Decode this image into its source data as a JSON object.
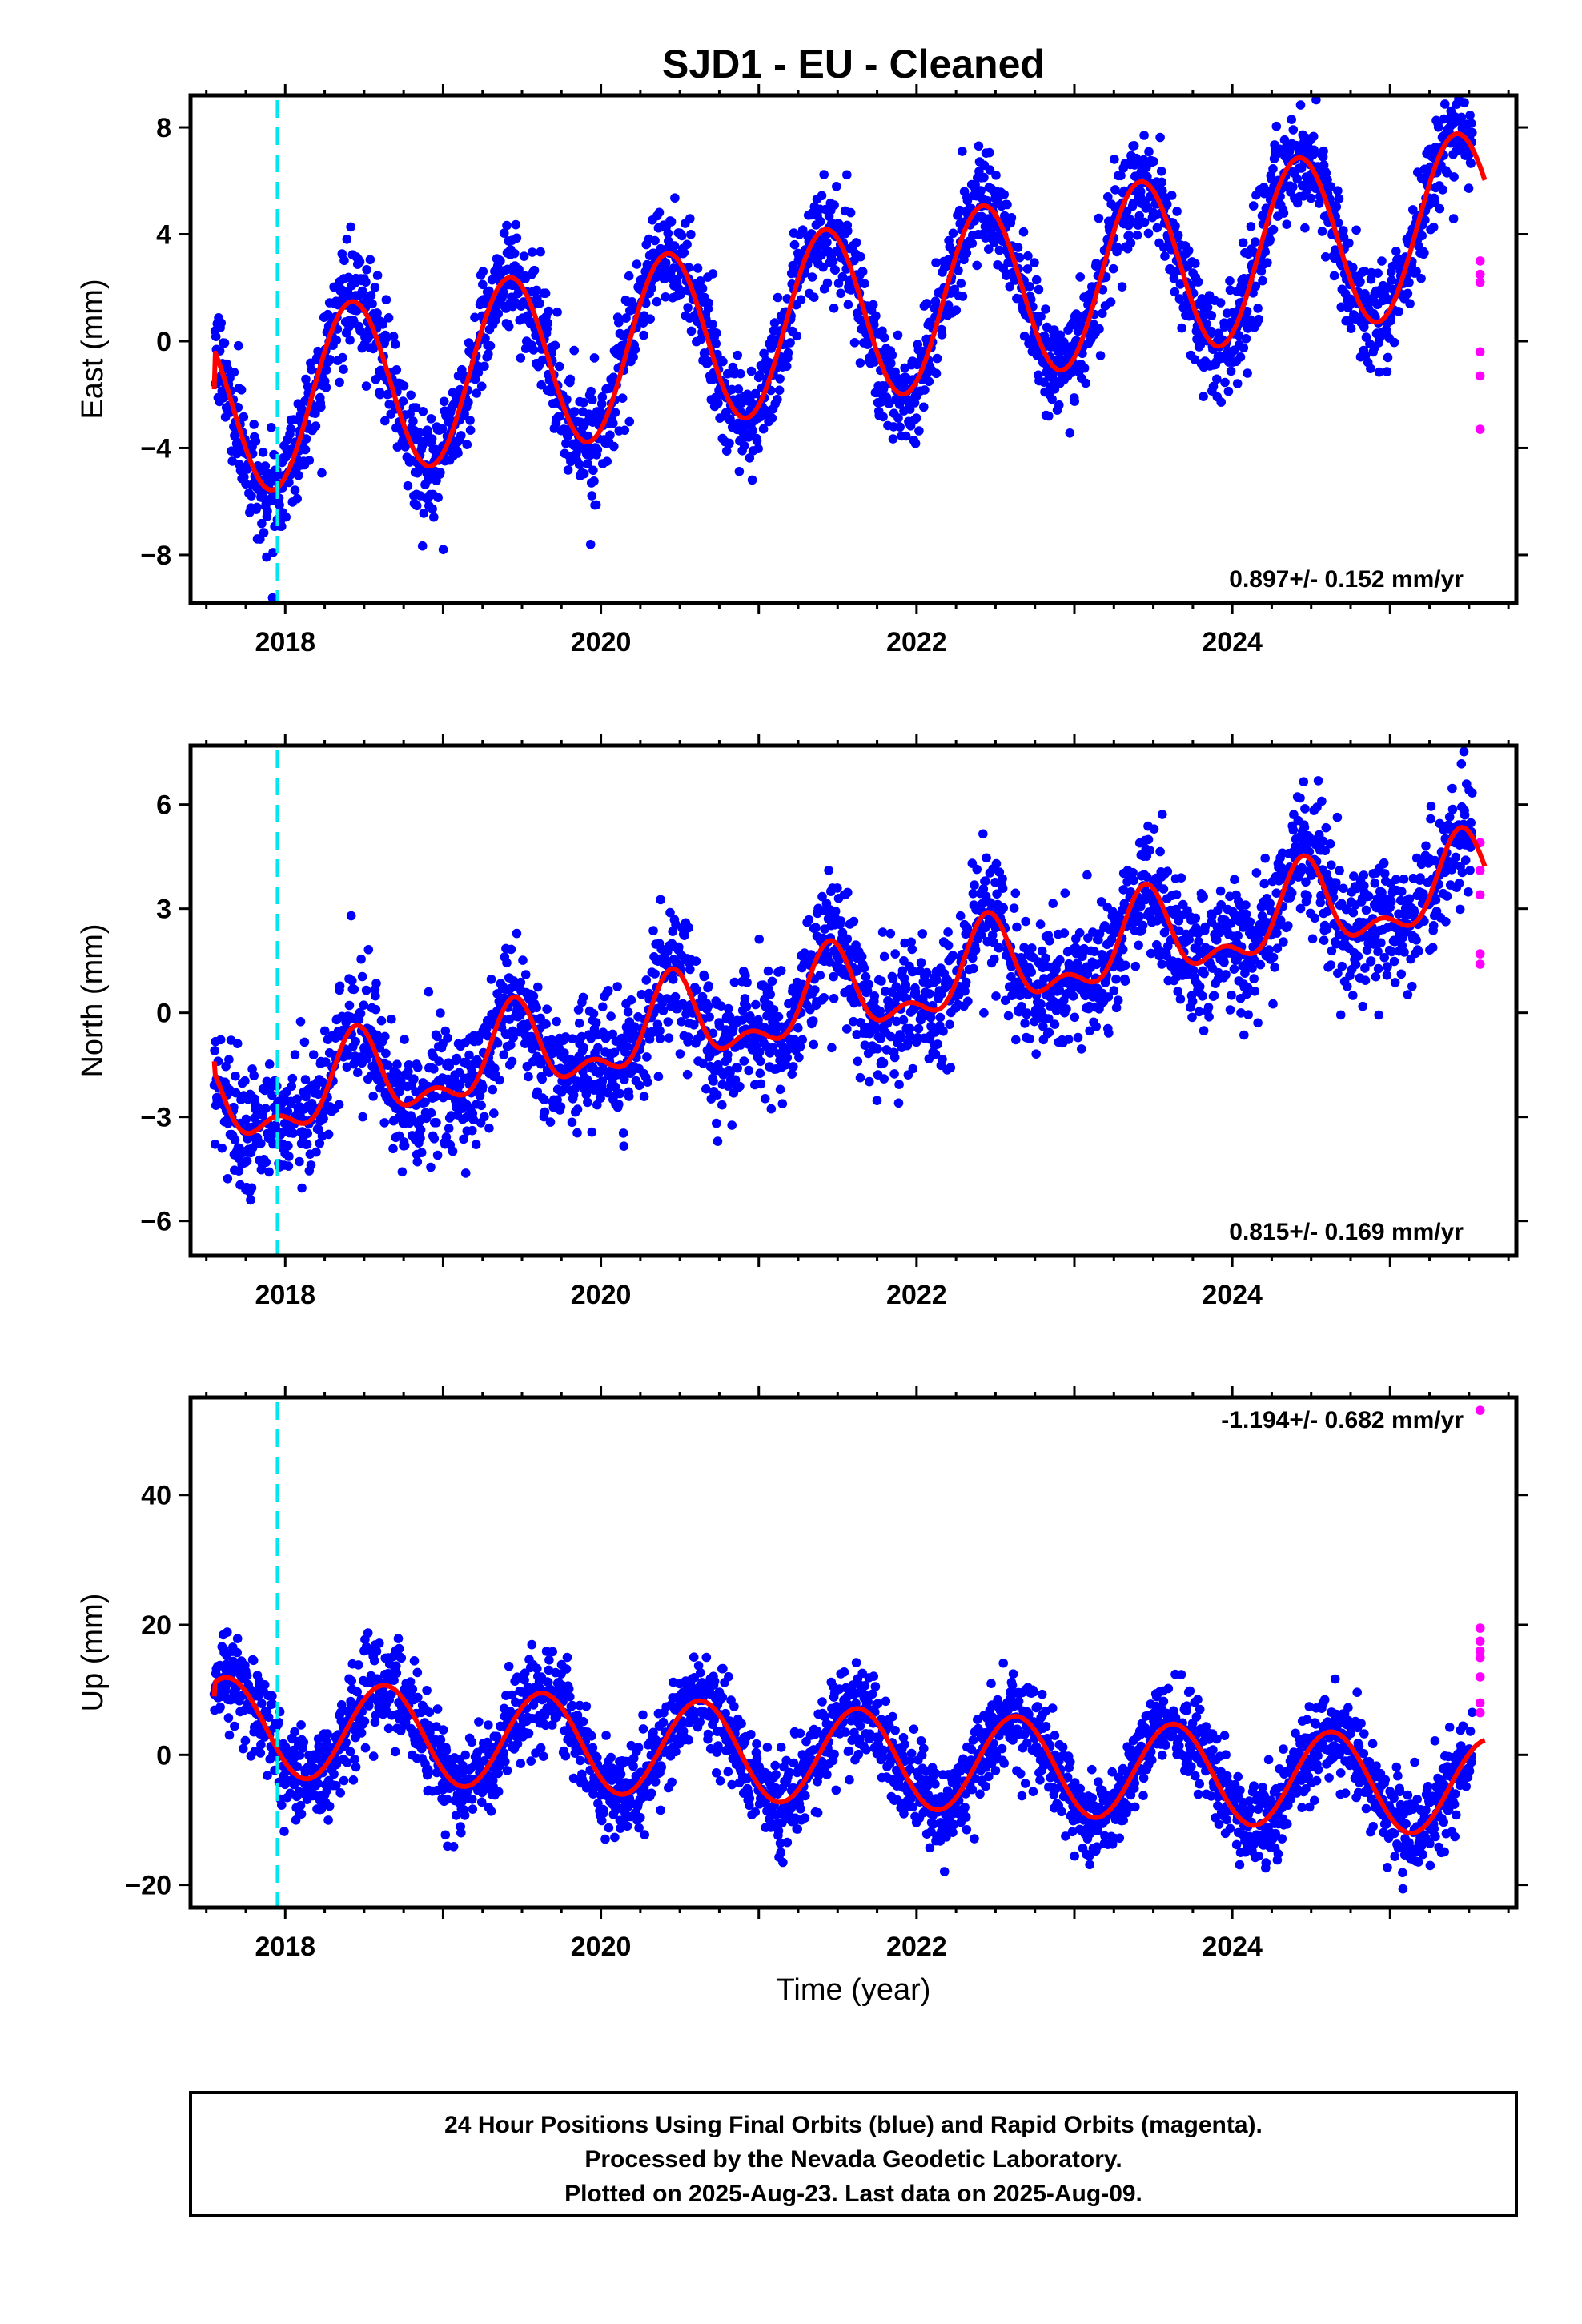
{
  "title": "SJD1  - EU - Cleaned",
  "xlabel": "Time (year)",
  "footer_lines": [
    "24 Hour Positions Using Final Orbits (blue) and Rapid Orbits (magenta).",
    "Processed by the Nevada Geodetic Laboratory.",
    "Plotted on 2025-Aug-23. Last data on 2025-Aug-09."
  ],
  "colors": {
    "final_orbits": "#0000ff",
    "rapid_orbits": "#ff00ff",
    "model_fit": "#ff0000",
    "equipment_change": "#00e5ee",
    "frame": "#000000"
  },
  "chart_data": [
    {
      "type": "scatter",
      "ylabel": "East (mm)",
      "rate_label": "0.897+/- 0.152 mm/yr",
      "rate_position": "bottom-right",
      "xlim": [
        2017.4,
        2025.8
      ],
      "ylim": [
        -9.8,
        9.2
      ],
      "xticks": [
        2018,
        2020,
        2022,
        2024
      ],
      "yticks": [
        -8,
        -4,
        0,
        4,
        8
      ],
      "ytick_labels": [
        "−8",
        "−4",
        "0",
        "4",
        "8"
      ],
      "equipment_change_x": 2017.95,
      "model": {
        "t0": 2017.55,
        "t1": 2025.6,
        "offset": -2.6,
        "trend": 0.897,
        "amplitude": 3.3,
        "peak_phase": 0.42,
        "semiannual_amplitude": 0.0,
        "start_value": -1.8
      },
      "scatter_noise_mm": 1.0,
      "final_orbit_span": [
        2017.55,
        2025.52
      ],
      "rapid_points": {
        "x": [
          2025.57,
          2025.57,
          2025.57,
          2025.57,
          2025.57,
          2025.57
        ],
        "y": [
          3.0,
          2.2,
          2.5,
          -0.4,
          -1.3,
          -3.3
        ]
      }
    },
    {
      "type": "scatter",
      "ylabel": "North (mm)",
      "rate_label": "0.815+/- 0.169 mm/yr",
      "rate_position": "bottom-right",
      "xlim": [
        2017.4,
        2025.8
      ],
      "ylim": [
        -7.0,
        7.7
      ],
      "xticks": [
        2018,
        2020,
        2022,
        2024
      ],
      "yticks": [
        -6,
        -3,
        0,
        3,
        6
      ],
      "ytick_labels": [
        "−6",
        "−3",
        "0",
        "3",
        "6"
      ],
      "equipment_change_x": 2017.95,
      "model": {
        "t0": 2017.55,
        "t1": 2025.6,
        "offset": -2.8,
        "trend": 0.815,
        "amplitude": 1.1,
        "peak_phase": 0.45,
        "semiannual_amplitude": 0.6,
        "start_value": -1.4
      },
      "scatter_noise_mm": 0.9,
      "final_orbit_span": [
        2017.55,
        2025.52
      ],
      "rapid_points": {
        "x": [
          2025.57,
          2025.57,
          2025.57,
          2025.57,
          2025.57
        ],
        "y": [
          4.9,
          4.1,
          3.4,
          1.7,
          1.4
        ]
      }
    },
    {
      "type": "scatter",
      "ylabel": "Up (mm)",
      "rate_label": "-1.194+/- 0.682 mm/yr",
      "rate_position": "top-right",
      "xlim": [
        2017.4,
        2025.8
      ],
      "ylim": [
        -23.5,
        55.0
      ],
      "xticks": [
        2018,
        2020,
        2022,
        2024
      ],
      "yticks": [
        -20,
        0,
        20,
        40
      ],
      "ytick_labels": [
        "−20",
        "0",
        "20",
        "40"
      ],
      "equipment_change_x": 2017.95,
      "model": {
        "t0": 2017.55,
        "t1": 2025.6,
        "offset": 4.5,
        "trend": -1.194,
        "amplitude": 7.5,
        "peak_phase": 0.63,
        "semiannual_amplitude": 0.0,
        "start_value": 9.0
      },
      "scatter_noise_mm": 3.5,
      "final_orbit_span": [
        2017.55,
        2025.52
      ],
      "rapid_points": {
        "x": [
          2025.57,
          2025.57,
          2025.57,
          2025.57,
          2025.57,
          2025.57,
          2025.57,
          2025.57
        ],
        "y": [
          53.0,
          19.5,
          17.5,
          16.0,
          15.0,
          12.0,
          8.0,
          6.5
        ]
      }
    }
  ]
}
